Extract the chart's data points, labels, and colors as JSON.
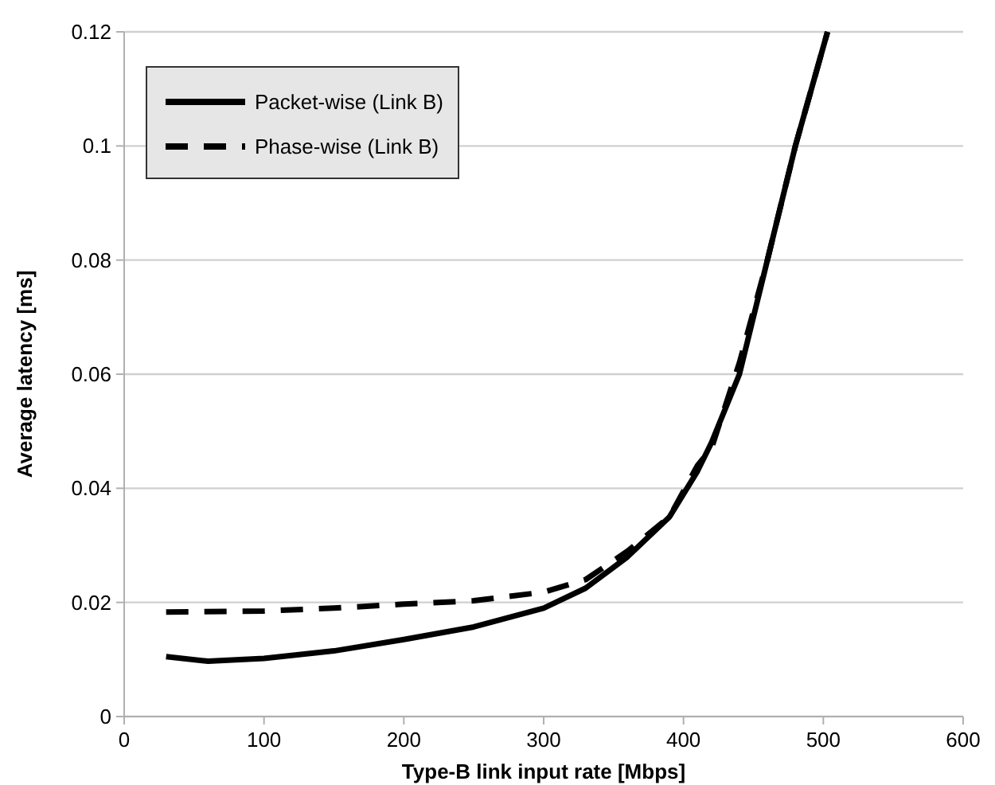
{
  "chart_data": {
    "type": "line",
    "xlabel": "Type-B link input rate [Mbps]",
    "ylabel": "Average latency [ms]",
    "xlim": [
      0,
      600
    ],
    "xticks": [
      0,
      100,
      200,
      300,
      400,
      500,
      600
    ],
    "ylim": [
      0,
      0.12
    ],
    "yticks": [
      0,
      0.02,
      0.04,
      0.06,
      0.08,
      0.1,
      0.12
    ],
    "grid": "y",
    "legend": "top left",
    "marker": "none",
    "series": [
      {
        "name": "Packet-wise (Link B)",
        "color": "#000000",
        "line_style": "solid",
        "x": [
          30,
          60,
          100,
          150,
          200,
          250,
          300,
          330,
          360,
          390,
          410,
          420,
          440,
          460,
          480,
          503
        ],
        "values": [
          0.0105,
          0.0097,
          0.0102,
          0.0115,
          0.0135,
          0.0157,
          0.019,
          0.0225,
          0.028,
          0.035,
          0.043,
          0.048,
          0.06,
          0.08,
          0.1,
          0.12
        ]
      },
      {
        "name": "Phase-wise (Link B)",
        "color": "#000000",
        "line_style": "dashed",
        "x": [
          30,
          100,
          150,
          200,
          250,
          300,
          330,
          360,
          390,
          410,
          420,
          440,
          460,
          480,
          503
        ],
        "values": [
          0.0183,
          0.0185,
          0.019,
          0.0197,
          0.0203,
          0.0218,
          0.024,
          0.029,
          0.035,
          0.044,
          0.047,
          0.062,
          0.08,
          0.1,
          0.12
        ]
      }
    ]
  }
}
